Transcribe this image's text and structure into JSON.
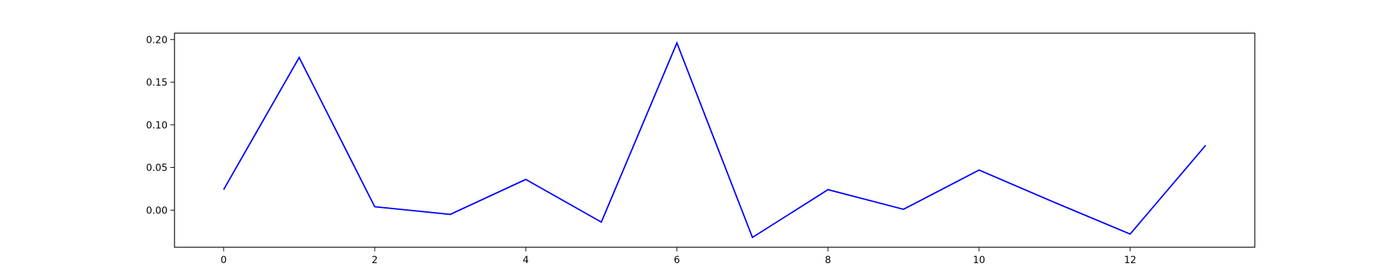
{
  "chart_data": {
    "type": "line",
    "title": "",
    "xlabel": "",
    "ylabel": "",
    "x": [
      0,
      1,
      2,
      3,
      4,
      5,
      6,
      7,
      8,
      9,
      10,
      11,
      12,
      13
    ],
    "series": [
      {
        "values": [
          0.024,
          0.179,
          0.004,
          -0.005,
          0.036,
          -0.014,
          0.196,
          -0.032,
          0.024,
          0.001,
          0.047,
          0.009,
          -0.028,
          0.076
        ],
        "color": "#0000ff"
      }
    ],
    "xlim": [
      -0.65,
      13.65
    ],
    "ylim": [
      -0.0435,
      0.2075
    ],
    "xticks": [
      0,
      2,
      4,
      6,
      8,
      10,
      12
    ],
    "xtick_labels": [
      "0",
      "2",
      "4",
      "6",
      "8",
      "10",
      "12"
    ],
    "yticks": [
      0.0,
      0.05,
      0.1,
      0.15,
      0.2
    ],
    "ytick_labels": [
      "0.00",
      "0.05",
      "0.10",
      "0.15",
      "0.20"
    ],
    "grid": false,
    "legend": "none"
  }
}
